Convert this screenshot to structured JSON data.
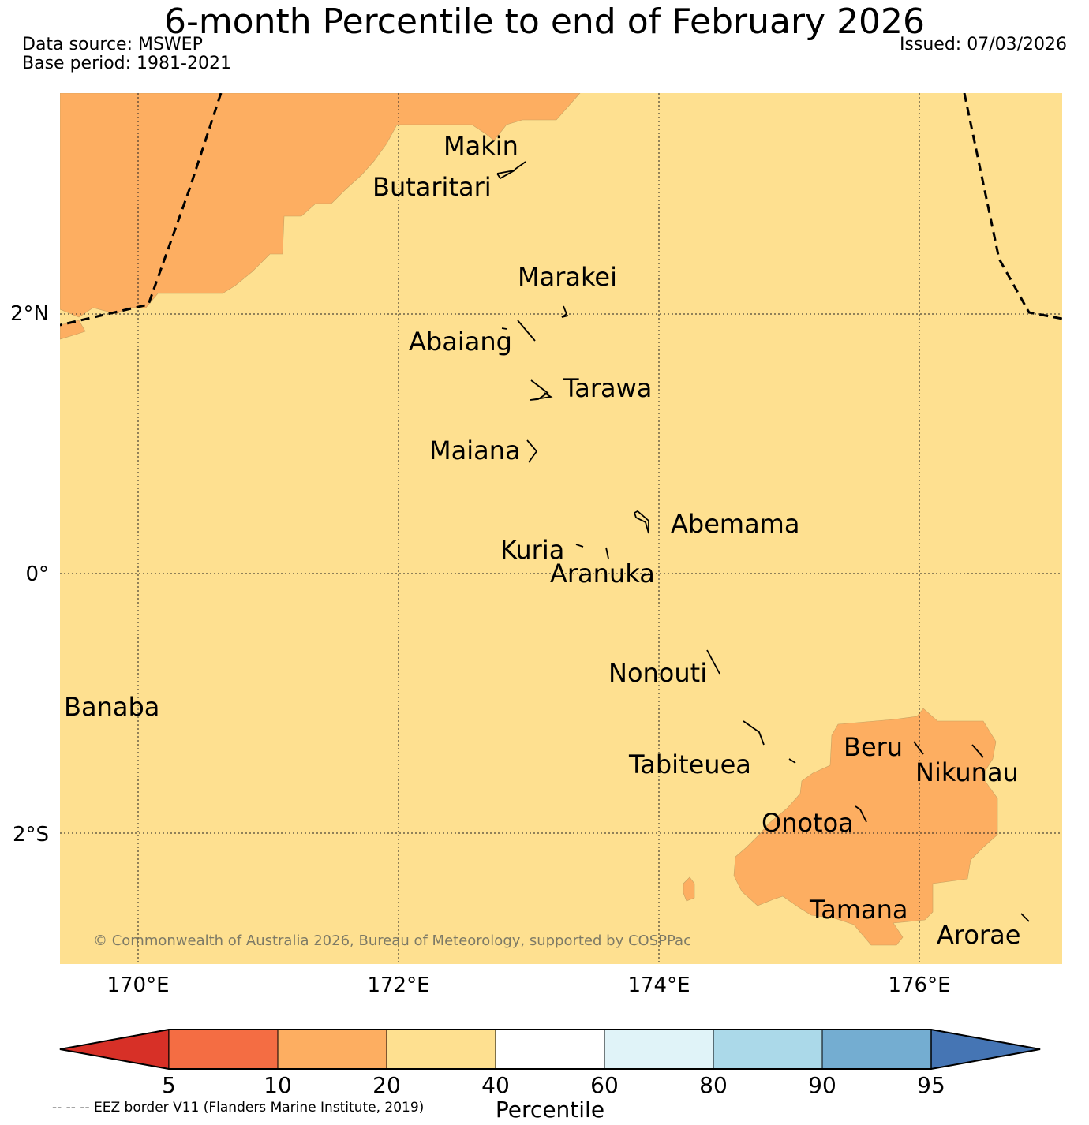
{
  "title": "6-month Percentile to end of February 2026",
  "data_source": "Data source: MSWEP",
  "base_period": "Base period: 1981-2021",
  "issued": "Issued: 07/03/2026",
  "copyright": "© Commonwealth of Australia 2026, Bureau of Meteorology, supported by COSPPac",
  "eez_note": "-- -- -- EEZ border V11 (Flanders Marine Institute, 2019)",
  "lat_labels": [
    {
      "label": "2°N",
      "lat": 2
    },
    {
      "label": "0°",
      "lat": 0
    },
    {
      "label": "2°S",
      "lat": -2
    }
  ],
  "lon_labels": [
    {
      "label": "170°E",
      "lon": 170
    },
    {
      "label": "172°E",
      "lon": 172
    },
    {
      "label": "174°E",
      "lon": 174
    },
    {
      "label": "176°E",
      "lon": 176
    }
  ],
  "islands": [
    "Makin",
    "Butaritari",
    "Marakei",
    "Abaiang",
    "Tarawa",
    "Maiana",
    "Abemama",
    "Kuria",
    "Aranuka",
    "Nonouti",
    "Banaba",
    "Beru",
    "Tabiteuea",
    "Nikunau",
    "Onotoa",
    "Tamana",
    "Arorae"
  ],
  "colorbar": {
    "label": "Percentile",
    "ticks": [
      "5",
      "10",
      "20",
      "40",
      "60",
      "80",
      "90",
      "95"
    ],
    "colors": {
      "below_5": "#d73027",
      "5_10": "#f46d43",
      "10_20": "#fdae61",
      "20_40": "#fee090",
      "40_60": "#ffffff",
      "60_80": "#e0f3f8",
      "80_90": "#abd9e9",
      "90_95": "#74add1",
      "above_95": "#4575b4"
    }
  }
}
